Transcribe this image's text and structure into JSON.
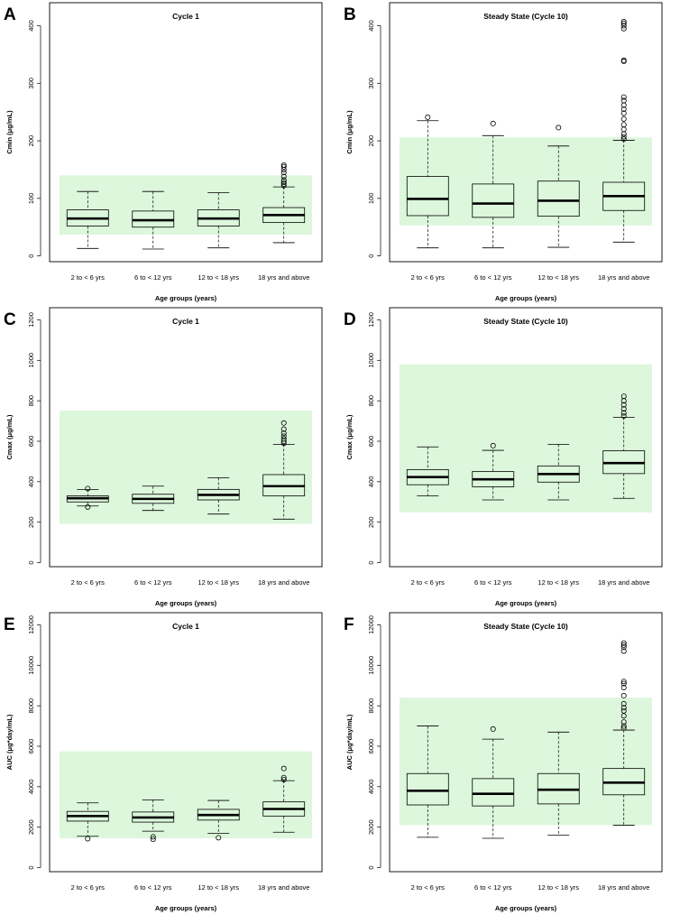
{
  "chart_data": [
    {
      "panel": "A",
      "type": "boxplot",
      "title": "Cycle 1",
      "xlabel": "Age groups (years)",
      "ylabel": "Cmin (μg/mL)",
      "categories": [
        "2 to < 6 yrs",
        "6 to < 12 yrs",
        "12 to < 18 yrs",
        "18 yrs and above"
      ],
      "yticks": [
        0,
        100,
        200,
        300,
        400
      ],
      "ylim": [
        -10,
        440
      ],
      "reference_range": [
        37,
        140
      ],
      "reference_color": "#dcf7dc",
      "boxes": [
        {
          "whisker_low": 13,
          "q1": 52,
          "median": 65,
          "q3": 80,
          "whisker_high": 112,
          "outliers": []
        },
        {
          "whisker_low": 12,
          "q1": 50,
          "median": 62,
          "q3": 78,
          "whisker_high": 112,
          "outliers": []
        },
        {
          "whisker_low": 14,
          "q1": 52,
          "median": 65,
          "q3": 80,
          "whisker_high": 110,
          "outliers": []
        },
        {
          "whisker_low": 23,
          "q1": 58,
          "median": 71,
          "q3": 84,
          "whisker_high": 120,
          "outliers": [
            122,
            125,
            128,
            132,
            138,
            145,
            150,
            155,
            158
          ]
        }
      ]
    },
    {
      "panel": "B",
      "type": "boxplot",
      "title": "Steady State (Cycle 10)",
      "xlabel": "Age groups (years)",
      "ylabel": "Cmin (μg/mL)",
      "categories": [
        "2 to < 6 yrs",
        "6 to < 12 yrs",
        "12 to < 18 yrs",
        "18 yrs and above"
      ],
      "yticks": [
        0,
        100,
        200,
        300,
        400
      ],
      "ylim": [
        -10,
        440
      ],
      "reference_range": [
        53,
        206
      ],
      "reference_color": "#dcf7dc",
      "boxes": [
        {
          "whisker_low": 14,
          "q1": 70,
          "median": 99,
          "q3": 138,
          "whisker_high": 235,
          "outliers": [
            241
          ]
        },
        {
          "whisker_low": 14,
          "q1": 67,
          "median": 91,
          "q3": 125,
          "whisker_high": 209,
          "outliers": [
            230
          ]
        },
        {
          "whisker_low": 15,
          "q1": 69,
          "median": 96,
          "q3": 130,
          "whisker_high": 191,
          "outliers": [
            223
          ]
        },
        {
          "whisker_low": 24,
          "q1": 79,
          "median": 104,
          "q3": 128,
          "whisker_high": 201,
          "outliers": [
            203,
            207,
            212,
            220,
            228,
            238,
            248,
            255,
            262,
            270,
            276,
            338,
            340,
            395,
            400,
            404,
            407
          ]
        }
      ]
    },
    {
      "panel": "C",
      "type": "boxplot",
      "title": "Cycle 1",
      "xlabel": "Age groups (years)",
      "ylabel": "Cmax (μg/mL)",
      "categories": [
        "2 to < 6 yrs",
        "6 to < 12 yrs",
        "12 to < 18 yrs",
        "18 yrs and above"
      ],
      "yticks": [
        0,
        200,
        400,
        600,
        800,
        1000,
        1200
      ],
      "ylim": [
        -20,
        1260
      ],
      "reference_range": [
        192,
        752
      ],
      "reference_color": "#dcf7dc",
      "boxes": [
        {
          "whisker_low": 280,
          "q1": 300,
          "median": 318,
          "q3": 330,
          "whisker_high": 362,
          "outliers": [
            275,
            366
          ]
        },
        {
          "whisker_low": 258,
          "q1": 293,
          "median": 315,
          "q3": 338,
          "whisker_high": 378,
          "outliers": []
        },
        {
          "whisker_low": 240,
          "q1": 310,
          "median": 335,
          "q3": 362,
          "whisker_high": 420,
          "outliers": []
        },
        {
          "whisker_low": 215,
          "q1": 330,
          "median": 378,
          "q3": 435,
          "whisker_high": 585,
          "outliers": [
            590,
            600,
            612,
            625,
            640,
            660,
            690
          ]
        }
      ]
    },
    {
      "panel": "D",
      "type": "boxplot",
      "title": "Steady State (Cycle 10)",
      "xlabel": "Age groups (years)",
      "ylabel": "Cmax (μg/mL)",
      "categories": [
        "2 to < 6 yrs",
        "6 to < 12 yrs",
        "12 to < 18 yrs",
        "18 yrs and above"
      ],
      "yticks": [
        0,
        200,
        400,
        600,
        800,
        1000,
        1200
      ],
      "ylim": [
        -20,
        1260
      ],
      "reference_range": [
        248,
        980
      ],
      "reference_color": "#dcf7dc",
      "boxes": [
        {
          "whisker_low": 330,
          "q1": 385,
          "median": 423,
          "q3": 460,
          "whisker_high": 572,
          "outliers": []
        },
        {
          "whisker_low": 310,
          "q1": 375,
          "median": 412,
          "q3": 450,
          "whisker_high": 555,
          "outliers": [
            578
          ]
        },
        {
          "whisker_low": 310,
          "q1": 398,
          "median": 438,
          "q3": 478,
          "whisker_high": 585,
          "outliers": []
        },
        {
          "whisker_low": 318,
          "q1": 440,
          "median": 492,
          "q3": 553,
          "whisker_high": 718,
          "outliers": [
            725,
            740,
            760,
            780,
            800,
            822
          ]
        }
      ]
    },
    {
      "panel": "E",
      "type": "boxplot",
      "title": "Cycle 1",
      "xlabel": "Age groups (years)",
      "ylabel": "AUC (μg*day/mL)",
      "categories": [
        "2 to < 6 yrs",
        "6 to < 12 yrs",
        "12 to < 18 yrs",
        "18 yrs and above"
      ],
      "yticks": [
        0,
        2000,
        4000,
        6000,
        8000,
        10000,
        12000
      ],
      "ylim": [
        -200,
        12600
      ],
      "reference_range": [
        1450,
        5750
      ],
      "reference_color": "#dcf7dc",
      "boxes": [
        {
          "whisker_low": 1550,
          "q1": 2300,
          "median": 2550,
          "q3": 2780,
          "whisker_high": 3200,
          "outliers": [
            1430
          ]
        },
        {
          "whisker_low": 1800,
          "q1": 2250,
          "median": 2480,
          "q3": 2750,
          "whisker_high": 3350,
          "outliers": [
            1400,
            1520
          ]
        },
        {
          "whisker_low": 1700,
          "q1": 2350,
          "median": 2600,
          "q3": 2880,
          "whisker_high": 3320,
          "outliers": [
            1480
          ]
        },
        {
          "whisker_low": 1750,
          "q1": 2550,
          "median": 2900,
          "q3": 3250,
          "whisker_high": 4300,
          "outliers": [
            4350,
            4450,
            4900
          ]
        }
      ]
    },
    {
      "panel": "F",
      "type": "boxplot",
      "title": "Steady State (Cycle 10)",
      "xlabel": "Age groups (years)",
      "ylabel": "AUC (μg*day/mL)",
      "categories": [
        "2 to < 6 yrs",
        "6 to < 12 yrs",
        "12 to < 18 yrs",
        "18 yrs and above"
      ],
      "yticks": [
        0,
        2000,
        4000,
        6000,
        8000,
        10000,
        12000
      ],
      "ylim": [
        -200,
        12600
      ],
      "reference_range": [
        2100,
        8400
      ],
      "reference_color": "#dcf7dc",
      "boxes": [
        {
          "whisker_low": 1500,
          "q1": 3100,
          "median": 3800,
          "q3": 4650,
          "whisker_high": 7000,
          "outliers": []
        },
        {
          "whisker_low": 1450,
          "q1": 3050,
          "median": 3650,
          "q3": 4400,
          "whisker_high": 6350,
          "outliers": [
            6850
          ]
        },
        {
          "whisker_low": 1600,
          "q1": 3150,
          "median": 3850,
          "q3": 4650,
          "whisker_high": 6700,
          "outliers": []
        },
        {
          "whisker_low": 2100,
          "q1": 3600,
          "median": 4200,
          "q3": 4900,
          "whisker_high": 6800,
          "outliers": [
            6900,
            7000,
            7200,
            7500,
            7750,
            7900,
            8100,
            8500,
            8900,
            9100,
            9200,
            10700,
            10900,
            11000,
            11100
          ]
        }
      ]
    }
  ]
}
